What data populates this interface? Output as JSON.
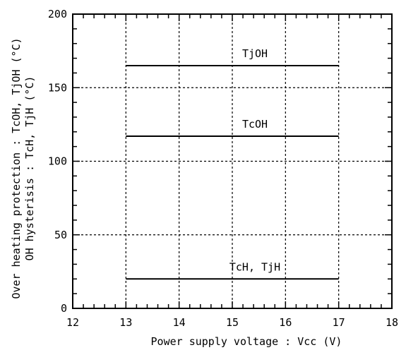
{
  "chart_data": {
    "type": "line",
    "xlabel": "Power supply voltage : Vcc (V)",
    "ylabel_lines": [
      "Over heating protection : TcOH, TjOH (°C)",
      "OH hysterisis : TcH, TjH (°C)"
    ],
    "xlim": [
      12,
      18
    ],
    "ylim": [
      0,
      200
    ],
    "xticks": [
      12,
      13,
      14,
      15,
      16,
      17,
      18
    ],
    "yticks": [
      0,
      50,
      100,
      150,
      200
    ],
    "x_minor_step": 0.2,
    "y_minor_step": 10,
    "grid": true,
    "grid_style": "dotted",
    "legend": "none",
    "series": [
      {
        "name": "TjOH",
        "x": [
          13,
          17
        ],
        "y": [
          165,
          165
        ]
      },
      {
        "name": "TcOH",
        "x": [
          13,
          17
        ],
        "y": [
          117,
          117
        ]
      },
      {
        "name": "TcH, TjH",
        "x": [
          13,
          17
        ],
        "y": [
          20,
          20
        ]
      }
    ]
  }
}
